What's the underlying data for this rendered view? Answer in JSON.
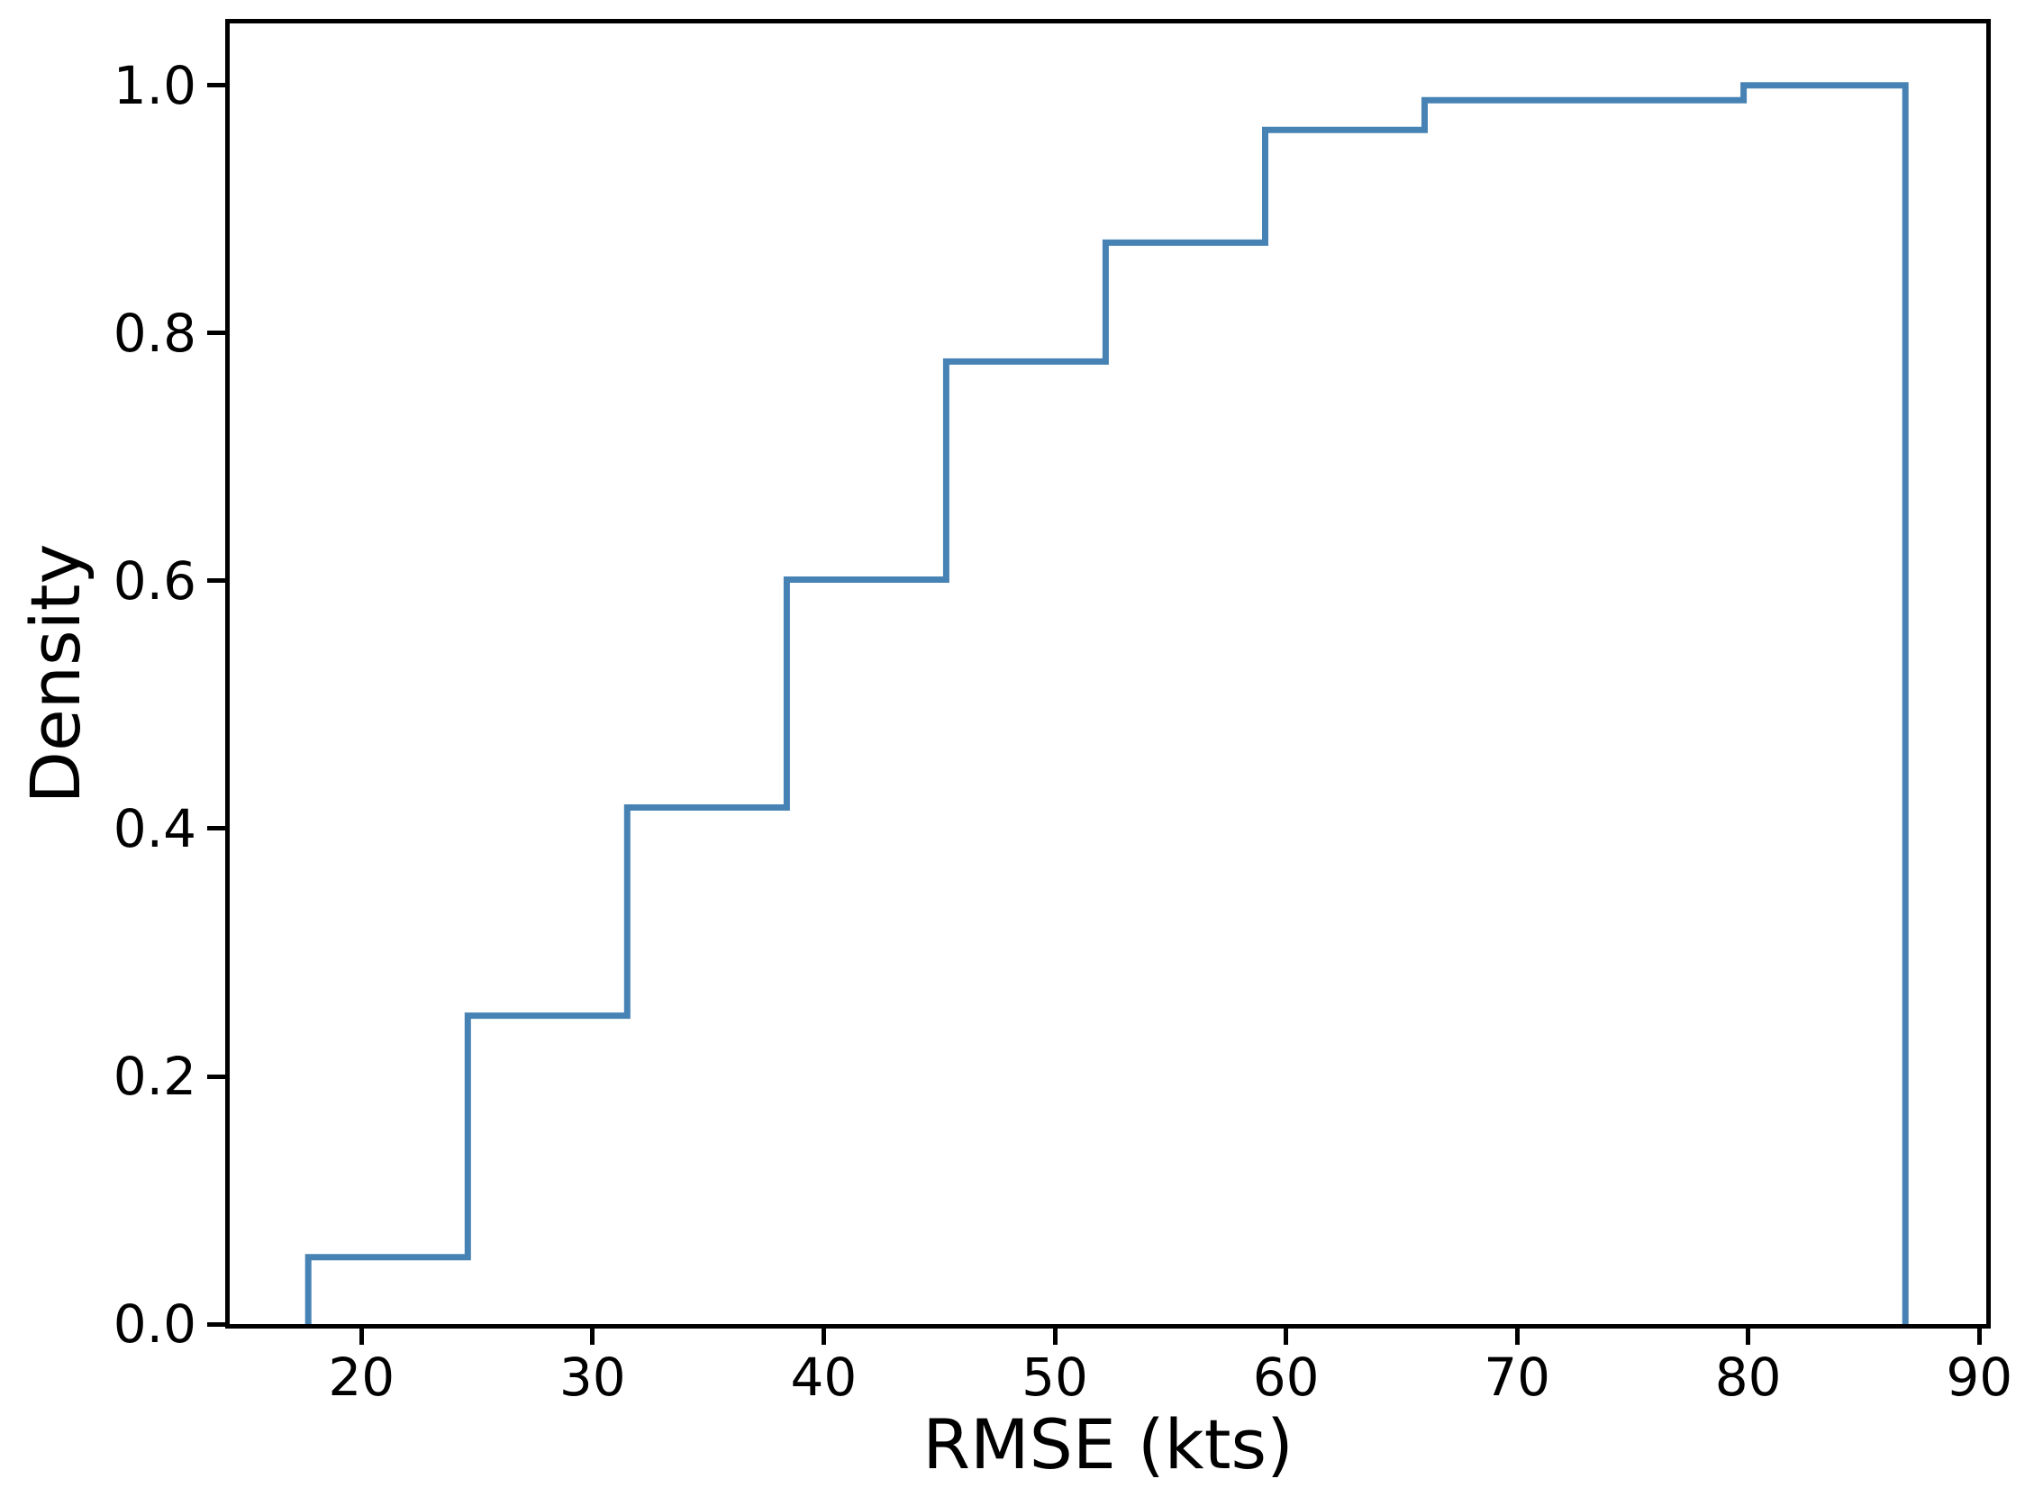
{
  "chart_data": {
    "type": "step-cumulative-histogram",
    "title": "",
    "xlabel": "RMSE (kts)",
    "ylabel": "Density",
    "x_ticks": [
      20,
      30,
      40,
      50,
      60,
      70,
      80,
      90
    ],
    "y_ticks": [
      0.0,
      0.2,
      0.4,
      0.6,
      0.8,
      1.0
    ],
    "xlim": [
      14.3,
      90.3
    ],
    "ylim": [
      0,
      1.05
    ],
    "grid": false,
    "line_color": "#4682b4",
    "axis_color": "#000000",
    "bin_edges": [
      17.7,
      24.6,
      31.5,
      38.4,
      45.3,
      52.2,
      59.1,
      66.0,
      72.9,
      79.8,
      86.8
    ],
    "cumulative_values": [
      0.054,
      0.249,
      0.417,
      0.601,
      0.777,
      0.873,
      0.964,
      0.988,
      0.988,
      1.0
    ]
  }
}
